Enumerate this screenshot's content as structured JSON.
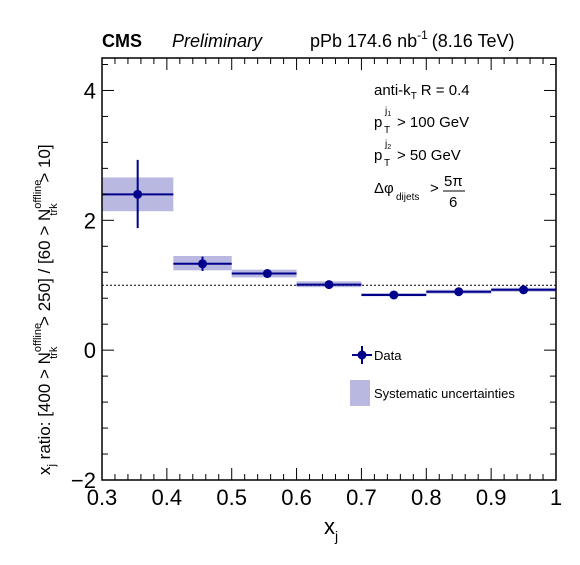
{
  "header": {
    "experiment": "CMS",
    "status": "Preliminary",
    "dataset_prefix": "pPb 174.6 nb",
    "dataset_exp": "-1",
    "energy": "(8.16 TeV)"
  },
  "annotations": {
    "jet_algo": "anti-k",
    "jet_algo_sub": "T",
    "jet_radius": "R = 0.4",
    "pt1_sub": "T",
    "pt1_sup": "j",
    "pt1_sup_sub": "1",
    "pt1_cut": "> 100 GeV",
    "pt2_sub": "T",
    "pt2_sup": "j",
    "pt2_sup_sub": "2",
    "pt2_cut": "> 50 GeV",
    "dphi_sub": "dijets",
    "dphi_gt": ">",
    "dphi_num": "5π",
    "dphi_den": "6"
  },
  "axes": {
    "x_label": "x",
    "x_label_sub": "j",
    "y_label_parts": {
      "a": "x",
      "a_sub": "j",
      "b": " ratio: [400 > N",
      "b_sup": "offline",
      "b_sub": "trk",
      "c": " > 250] / [60 > N",
      "c_sup": "offline",
      "c_sub": "trk",
      "d": " > 10]"
    }
  },
  "chart_data": {
    "type": "scatter",
    "xlim": [
      0.3,
      1.0
    ],
    "ylim": [
      -2,
      4.5
    ],
    "x_ticks": [
      0.3,
      0.4,
      0.5,
      0.6,
      0.7,
      0.8,
      0.9,
      1.0
    ],
    "x_tick_labels": [
      "0.3",
      "0.4",
      "0.5",
      "0.6",
      "0.7",
      "0.8",
      "0.9",
      "1"
    ],
    "y_ticks": [
      -2,
      0,
      2,
      4
    ],
    "y_tick_labels": [
      "−2",
      "0",
      "2",
      "4"
    ],
    "reference_line": 1.0,
    "series": [
      {
        "name": "Data",
        "color": "#00008b",
        "points": [
          {
            "x": 0.355,
            "xlo": 0.3,
            "xhi": 0.41,
            "y": 2.4,
            "ylo": 1.88,
            "yhi": 2.93
          },
          {
            "x": 0.455,
            "xlo": 0.41,
            "xhi": 0.5,
            "y": 1.33,
            "ylo": 1.22,
            "yhi": 1.44
          },
          {
            "x": 0.555,
            "xlo": 0.5,
            "xhi": 0.6,
            "y": 1.18,
            "ylo": 1.15,
            "yhi": 1.21
          },
          {
            "x": 0.65,
            "xlo": 0.6,
            "xhi": 0.7,
            "y": 1.01,
            "ylo": 0.99,
            "yhi": 1.03
          },
          {
            "x": 0.75,
            "xlo": 0.7,
            "xhi": 0.8,
            "y": 0.85,
            "ylo": 0.84,
            "yhi": 0.86
          },
          {
            "x": 0.85,
            "xlo": 0.8,
            "xhi": 0.9,
            "y": 0.9,
            "ylo": 0.89,
            "yhi": 0.91
          },
          {
            "x": 0.95,
            "xlo": 0.9,
            "xhi": 1.0,
            "y": 0.93,
            "ylo": 0.92,
            "yhi": 0.94
          }
        ]
      },
      {
        "name": "Systematic uncertainties",
        "color": "#b8b8e0",
        "boxes": [
          {
            "xlo": 0.3,
            "xhi": 0.41,
            "ylo": 2.14,
            "yhi": 2.66
          },
          {
            "xlo": 0.41,
            "xhi": 0.5,
            "ylo": 1.23,
            "yhi": 1.45
          },
          {
            "xlo": 0.5,
            "xhi": 0.6,
            "ylo": 1.12,
            "yhi": 1.24
          },
          {
            "xlo": 0.6,
            "xhi": 0.7,
            "ylo": 0.97,
            "yhi": 1.06
          },
          {
            "xlo": 0.7,
            "xhi": 0.8,
            "ylo": 0.83,
            "yhi": 0.88
          },
          {
            "xlo": 0.8,
            "xhi": 0.9,
            "ylo": 0.87,
            "yhi": 0.93
          },
          {
            "xlo": 0.9,
            "xhi": 1.0,
            "ylo": 0.9,
            "yhi": 0.96
          }
        ]
      }
    ],
    "legend": {
      "placement": "right",
      "entries": [
        "Data",
        "Systematic uncertainties"
      ]
    }
  }
}
